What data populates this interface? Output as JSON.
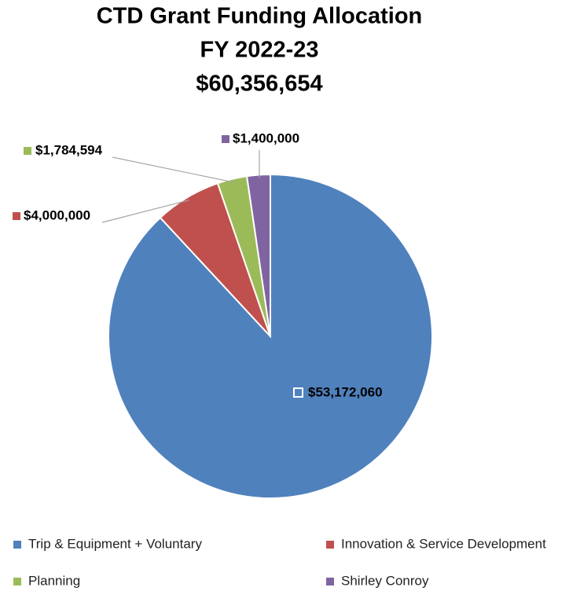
{
  "chart_data": {
    "type": "pie",
    "title": [
      "CTD Grant Funding Allocation",
      "FY 2022-23",
      "$60,356,654"
    ],
    "categories": [
      "Trip &  Equipment + Voluntary",
      "Innovation & Service Development",
      "Planning",
      "Shirley Conroy"
    ],
    "values": [
      53172060,
      4000000,
      1784594,
      1400000
    ],
    "value_labels": [
      "$53,172,060",
      "$4,000,000",
      "$1,784,594",
      "$1,400,000"
    ],
    "colors": [
      "#4f81bd",
      "#c0504d",
      "#9bbb59",
      "#8064a2"
    ],
    "legend": "bottom"
  }
}
